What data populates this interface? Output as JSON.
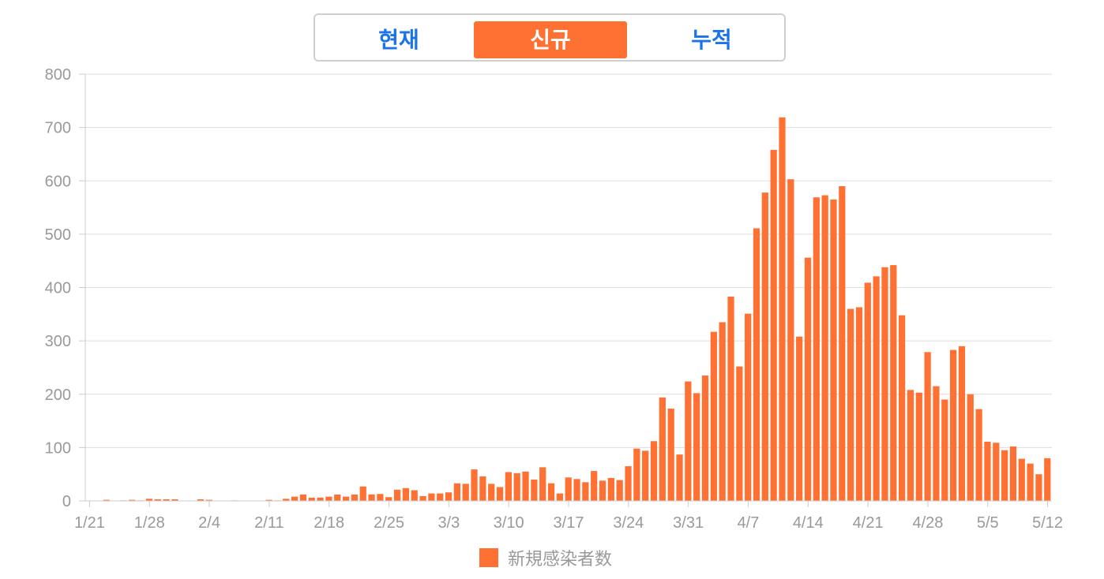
{
  "tabs": [
    {
      "label": "현재",
      "active": false
    },
    {
      "label": "신규",
      "active": true
    },
    {
      "label": "누적",
      "active": false
    }
  ],
  "colors": {
    "accent": "#ff7033",
    "tab_text": "#1a73e8",
    "axis_text": "#999999",
    "grid": "#dddddd"
  },
  "chart_data": {
    "type": "bar",
    "legend": {
      "label": "新規感染者数",
      "position": "bottom"
    },
    "grid": true,
    "ylim": [
      0,
      800
    ],
    "yticks": [
      0,
      100,
      200,
      300,
      400,
      500,
      600,
      700,
      800
    ],
    "xtick_labels": [
      "1/21",
      "1/28",
      "2/4",
      "2/11",
      "2/18",
      "2/25",
      "3/3",
      "3/10",
      "3/17",
      "3/24",
      "3/31",
      "4/7",
      "4/14",
      "4/21",
      "4/28",
      "5/5",
      "5/12"
    ],
    "x_start": "1/21",
    "x_end": "5/12",
    "values": [
      0,
      0,
      2,
      0,
      1,
      2,
      1,
      4,
      3,
      3,
      3,
      0,
      0,
      3,
      2,
      0,
      0,
      1,
      0,
      0,
      0,
      2,
      1,
      4,
      8,
      12,
      6,
      6,
      8,
      12,
      8,
      12,
      27,
      12,
      13,
      7,
      21,
      24,
      20,
      9,
      14,
      14,
      16,
      33,
      32,
      59,
      46,
      32,
      26,
      54,
      52,
      55,
      40,
      63,
      33,
      14,
      44,
      41,
      35,
      56,
      38,
      43,
      39,
      65,
      98,
      94,
      112,
      194,
      173,
      87,
      224,
      202,
      235,
      317,
      335,
      383,
      252,
      351,
      511,
      578,
      658,
      719,
      603,
      308,
      456,
      569,
      573,
      565,
      590,
      360,
      363,
      409,
      421,
      438,
      442,
      348,
      208,
      203,
      279,
      215,
      190,
      283,
      290,
      200,
      172,
      111,
      109,
      95,
      102,
      79,
      70,
      50,
      80
    ]
  }
}
